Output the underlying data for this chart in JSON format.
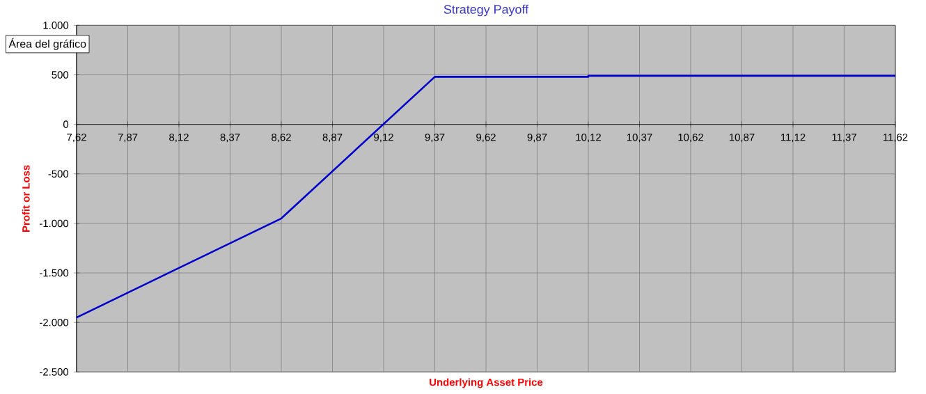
{
  "chart_data": {
    "type": "line",
    "title": "Strategy Payoff",
    "xlabel": "Underlying Asset Price",
    "ylabel": "Profit or Loss",
    "annotations": [
      "Área del gráfico"
    ],
    "x": [
      7.62,
      8.62,
      9.37,
      10.12,
      10.12,
      11.62
    ],
    "series": [
      {
        "color": "#0000cc",
        "values": [
          -1950,
          -950,
          480,
          480,
          490,
          490
        ]
      }
    ],
    "xlim": [
      7.62,
      11.62
    ],
    "xticks": [
      {
        "value": 7.62,
        "label": "7,62"
      },
      {
        "value": 7.87,
        "label": "7,87"
      },
      {
        "value": 8.12,
        "label": "8,12"
      },
      {
        "value": 8.37,
        "label": "8,37"
      },
      {
        "value": 8.62,
        "label": "8,62"
      },
      {
        "value": 8.87,
        "label": "8,87"
      },
      {
        "value": 9.12,
        "label": "9,12"
      },
      {
        "value": 9.37,
        "label": "9,37"
      },
      {
        "value": 9.62,
        "label": "9,62"
      },
      {
        "value": 9.87,
        "label": "9,87"
      },
      {
        "value": 10.12,
        "label": "10,12"
      },
      {
        "value": 10.37,
        "label": "10,37"
      },
      {
        "value": 10.62,
        "label": "10,62"
      },
      {
        "value": 10.87,
        "label": "10,87"
      },
      {
        "value": 11.12,
        "label": "11,12"
      },
      {
        "value": 11.37,
        "label": "11,37"
      },
      {
        "value": 11.62,
        "label": "11,62"
      }
    ],
    "ylim": [
      -2500,
      1000
    ],
    "yticks": [
      {
        "value": -2500,
        "label": "-2.500"
      },
      {
        "value": -2000,
        "label": "-2.000"
      },
      {
        "value": -1500,
        "label": "-1.500"
      },
      {
        "value": -1000,
        "label": "-1.000"
      },
      -500,
      0,
      500,
      {
        "value": 1000,
        "label": "1.000"
      }
    ],
    "grid": true,
    "marker": "none",
    "line_style": "solid"
  }
}
